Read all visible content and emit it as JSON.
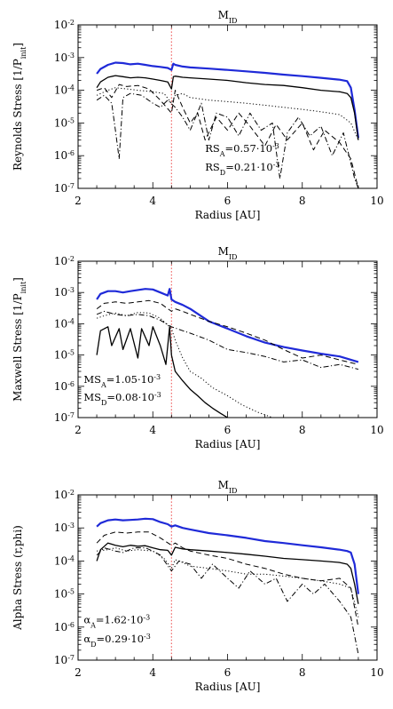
{
  "chart_data": [
    {
      "type": "line",
      "title": "M_ID",
      "title_main": "M",
      "title_sub": "ID",
      "xlabel": "Radius [AU]",
      "ylabel": "Reynolds Stress [1/P_init]",
      "ylabel_main": "Reynolds Stress [1/P",
      "ylabel_sub": "init",
      "ylabel_end": "]",
      "xlim": [
        2,
        10
      ],
      "ylim": [
        1e-07,
        0.01
      ],
      "yscale": "log",
      "x_ticks": [
        2,
        4,
        6,
        8,
        10
      ],
      "x_tick_labels": [
        "2",
        "4",
        "6",
        "8",
        "10"
      ],
      "y_ticks": [
        1e-07,
        1e-06,
        1e-05,
        0.0001,
        0.001,
        0.01
      ],
      "y_tick_labels": [
        [
          "10",
          "-7"
        ],
        [
          "10",
          "-6"
        ],
        [
          "10",
          "-5"
        ],
        [
          "10",
          "-4"
        ],
        [
          "10",
          "-3"
        ],
        [
          "10",
          "-2"
        ]
      ],
      "vline_x": 4.5,
      "annotations": [
        {
          "main": "RS",
          "sub": "A",
          "value": "=0.57·10",
          "exp": "-3",
          "x": 5.4,
          "y": 1.3e-06
        },
        {
          "main": "RS",
          "sub": "D",
          "value": "=0.21·10",
          "exp": "-3",
          "x": 5.4,
          "y": 3.5e-07
        }
      ],
      "series": [
        {
          "style": "blue",
          "x": [
            2.5,
            2.6,
            2.8,
            3.0,
            3.2,
            3.4,
            3.6,
            3.8,
            4.0,
            4.2,
            4.4,
            4.5,
            4.55,
            4.6,
            4.8,
            5.0,
            5.5,
            6.0,
            6.5,
            7.0,
            7.5,
            8.0,
            8.5,
            9.0,
            9.2,
            9.3,
            9.4,
            9.5
          ],
          "y": [
            0.00032,
            0.00045,
            0.0006,
            0.0007,
            0.00068,
            0.00062,
            0.00065,
            0.0006,
            0.00055,
            0.00052,
            0.00048,
            0.00042,
            0.00065,
            0.0006,
            0.00053,
            0.0005,
            0.00046,
            0.00042,
            0.00038,
            0.00034,
            0.0003,
            0.00027,
            0.00024,
            0.00021,
            0.00019,
            0.00012,
            2.5e-05,
            3.5e-06
          ]
        },
        {
          "style": "solid",
          "x": [
            2.5,
            2.6,
            2.8,
            3.0,
            3.2,
            3.4,
            3.6,
            3.8,
            4.0,
            4.2,
            4.4,
            4.5,
            4.55,
            4.6,
            4.8,
            5.0,
            5.5,
            6.0,
            6.5,
            7.0,
            7.5,
            8.0,
            8.5,
            9.0,
            9.2,
            9.3,
            9.4,
            9.5
          ],
          "y": [
            0.00012,
            0.00018,
            0.00025,
            0.00028,
            0.00026,
            0.00024,
            0.00025,
            0.00024,
            0.00022,
            0.0002,
            0.00018,
            0.00011,
            0.00026,
            0.00027,
            0.00025,
            0.00024,
            0.00022,
            0.0002,
            0.00017,
            0.00015,
            0.00014,
            0.00012,
            0.0001,
            9e-05,
            8e-05,
            6e-05,
            2e-05,
            3e-06
          ]
        },
        {
          "style": "dotted",
          "x": [
            2.5,
            2.8,
            3.0,
            3.3,
            3.6,
            4.0,
            4.3,
            4.5,
            4.6,
            4.8,
            5.0,
            5.5,
            6.0,
            6.5,
            7.0,
            7.5,
            8.0,
            8.5,
            9.0,
            9.3,
            9.5
          ],
          "y": [
            7e-05,
            0.0001,
            0.00012,
            0.00011,
            0.0001,
            9e-05,
            8e-05,
            4e-05,
            7e-05,
            8e-05,
            6e-05,
            5e-05,
            4.5e-05,
            4e-05,
            3.5e-05,
            3e-05,
            2.6e-05,
            2.2e-05,
            1.8e-05,
            1e-05,
            3e-06
          ]
        },
        {
          "style": "dashed",
          "x": [
            2.5,
            2.7,
            2.9,
            3.1,
            3.3,
            3.6,
            3.9,
            4.2,
            4.5,
            4.6,
            4.8,
            5.0,
            5.2,
            5.4,
            5.7,
            6.0,
            6.3,
            6.6,
            7.0,
            7.3,
            7.6,
            8.0,
            8.3,
            8.6,
            9.0,
            9.3,
            9.5
          ],
          "y": [
            0.0001,
            0.00012,
            6e-05,
            0.00015,
            0.00013,
            0.00014,
            0.00011,
            5e-05,
            2e-05,
            0.0001,
            3e-05,
            1e-05,
            2e-05,
            3e-06,
            1.5e-05,
            6e-06,
            2e-05,
            8e-06,
            2e-06,
            9e-06,
            3e-06,
            1e-05,
            1.5e-06,
            6e-06,
            2.5e-06,
            8e-07,
            1e-07
          ]
        },
        {
          "style": "dashdot",
          "x": [
            2.5,
            2.7,
            2.9,
            3.0,
            3.1,
            3.2,
            3.4,
            3.7,
            4.0,
            4.2,
            4.4,
            4.6,
            4.8,
            5.0,
            5.3,
            5.5,
            5.7,
            6.0,
            6.3,
            6.6,
            6.9,
            7.2,
            7.4,
            7.6,
            7.9,
            8.2,
            8.5,
            8.8,
            9.1,
            9.4,
            9.5
          ],
          "y": [
            5e-05,
            7e-05,
            4e-05,
            6e-06,
            8e-07,
            6e-05,
            8e-05,
            7e-05,
            4e-05,
            3e-05,
            5e-05,
            3e-05,
            1.5e-05,
            6e-06,
            4e-05,
            3e-06,
            2e-05,
            1.5e-05,
            4e-06,
            2e-05,
            6e-06,
            1e-05,
            2e-07,
            5e-06,
            1.5e-05,
            4e-06,
            8e-06,
            1e-06,
            5e-06,
            2e-07,
            1e-07
          ]
        }
      ]
    },
    {
      "type": "line",
      "title": "M_ID",
      "title_main": "M",
      "title_sub": "ID",
      "xlabel": "Radius [AU]",
      "ylabel": "Maxwell Stress [1/P_init]",
      "ylabel_main": "Maxwell Stress [1/P",
      "ylabel_sub": "init",
      "ylabel_end": "]",
      "xlim": [
        2,
        10
      ],
      "ylim": [
        1e-07,
        0.01
      ],
      "yscale": "log",
      "x_ticks": [
        2,
        4,
        6,
        8,
        10
      ],
      "x_tick_labels": [
        "2",
        "4",
        "6",
        "8",
        "10"
      ],
      "y_ticks": [
        1e-07,
        1e-06,
        1e-05,
        0.0001,
        0.001,
        0.01
      ],
      "y_tick_labels": [
        [
          "10",
          "-7"
        ],
        [
          "10",
          "-6"
        ],
        [
          "10",
          "-5"
        ],
        [
          "10",
          "-4"
        ],
        [
          "10",
          "-3"
        ],
        [
          "10",
          "-2"
        ]
      ],
      "vline_x": 4.5,
      "annotations": [
        {
          "main": "MS",
          "sub": "A",
          "value": "=1.05·10",
          "exp": "-3",
          "x": 2.15,
          "y": 1.3e-06
        },
        {
          "main": "MS",
          "sub": "D",
          "value": "=0.08·10",
          "exp": "-3",
          "x": 2.15,
          "y": 3.5e-07
        }
      ],
      "series": [
        {
          "style": "blue",
          "x": [
            2.5,
            2.6,
            2.8,
            3.0,
            3.2,
            3.4,
            3.6,
            3.8,
            4.0,
            4.2,
            4.4,
            4.45,
            4.5,
            4.6,
            4.8,
            5.0,
            5.5,
            6.0,
            6.5,
            7.0,
            7.5,
            8.0,
            8.5,
            9.0,
            9.5
          ],
          "y": [
            0.0006,
            0.0009,
            0.0011,
            0.0011,
            0.001,
            0.0011,
            0.0012,
            0.0013,
            0.00125,
            0.001,
            0.0008,
            0.0013,
            0.0006,
            0.0005,
            0.0004,
            0.0003,
            0.00012,
            7e-05,
            4e-05,
            2.5e-05,
            1.8e-05,
            1.4e-05,
            1.1e-05,
            9e-06,
            6e-06
          ]
        },
        {
          "style": "dashed",
          "x": [
            2.5,
            2.7,
            3.0,
            3.3,
            3.6,
            3.9,
            4.2,
            4.5,
            4.6,
            4.8,
            5.0,
            5.5,
            6.0,
            6.5,
            7.0,
            7.5,
            8.0,
            8.5,
            9.0,
            9.5
          ],
          "y": [
            0.0003,
            0.00045,
            0.0005,
            0.00045,
            0.0005,
            0.00055,
            0.00045,
            0.00025,
            0.0003,
            0.00025,
            0.0002,
            0.00012,
            8e-05,
            5e-05,
            3e-05,
            1.5e-05,
            8e-06,
            1e-05,
            7e-06,
            5e-06
          ]
        },
        {
          "style": "dotted",
          "x": [
            2.5,
            2.7,
            3.0,
            3.3,
            3.6,
            3.9,
            4.2,
            4.5,
            4.6,
            4.8,
            5.0,
            5.3,
            5.6,
            6.0,
            6.4,
            6.8,
            7.2
          ],
          "y": [
            0.00015,
            0.00018,
            0.00022,
            0.00018,
            0.00023,
            0.00022,
            0.00015,
            7e-05,
            3e-05,
            8e-06,
            3e-06,
            1.8e-06,
            9e-07,
            5e-07,
            2.5e-07,
            1.5e-07,
            1e-07
          ]
        },
        {
          "style": "dashdot",
          "x": [
            2.5,
            2.7,
            3.0,
            3.3,
            3.6,
            3.9,
            4.2,
            4.5,
            4.8,
            5.0,
            5.5,
            6.0,
            6.5,
            7.0,
            7.5,
            8.0,
            8.5,
            9.0,
            9.5
          ],
          "y": [
            0.0002,
            0.00025,
            0.0002,
            0.00018,
            0.0002,
            0.00018,
            0.00013,
            8e-05,
            6e-05,
            5e-05,
            3e-05,
            1.5e-05,
            1.2e-05,
            9e-06,
            6e-06,
            7e-06,
            4e-06,
            5e-06,
            3.5e-06
          ]
        },
        {
          "style": "solid",
          "x": [
            2.5,
            2.6,
            2.8,
            2.9,
            3.1,
            3.2,
            3.4,
            3.6,
            3.7,
            3.9,
            4.0,
            4.2,
            4.35,
            4.45,
            4.5,
            4.6,
            4.8,
            5.0,
            5.2,
            5.4,
            5.6,
            5.8,
            6.0
          ],
          "y": [
            1e-05,
            6e-05,
            8e-05,
            2e-05,
            7e-05,
            1.5e-05,
            7e-05,
            8e-06,
            7e-05,
            2e-05,
            8e-05,
            2e-05,
            5e-06,
            8e-05,
            1e-05,
            3e-06,
            1.5e-06,
            8e-07,
            5e-07,
            3e-07,
            2e-07,
            1.4e-07,
            1e-07
          ]
        }
      ]
    },
    {
      "type": "line",
      "title": "M_ID",
      "title_main": "M",
      "title_sub": "ID",
      "xlabel": "Radius [AU]",
      "ylabel": "Alpha Stress (r,phi)",
      "ylabel_main": "Alpha Stress (r,phi)",
      "ylabel_sub": "",
      "ylabel_end": "",
      "xlim": [
        2,
        10
      ],
      "ylim": [
        1e-07,
        0.01
      ],
      "yscale": "log",
      "x_ticks": [
        2,
        4,
        6,
        8,
        10
      ],
      "x_tick_labels": [
        "2",
        "4",
        "6",
        "8",
        "10"
      ],
      "y_ticks": [
        1e-07,
        1e-06,
        1e-05,
        0.0001,
        0.001,
        0.01
      ],
      "y_tick_labels": [
        [
          "10",
          "-7"
        ],
        [
          "10",
          "-6"
        ],
        [
          "10",
          "-5"
        ],
        [
          "10",
          "-4"
        ],
        [
          "10",
          "-3"
        ],
        [
          "10",
          "-2"
        ]
      ],
      "vline_x": 4.5,
      "annotations": [
        {
          "main": "α",
          "sub": "A",
          "value": "=1.62·10",
          "exp": "-3",
          "x": 2.15,
          "y": 1.3e-06
        },
        {
          "main": "α",
          "sub": "D",
          "value": "=0.29·10",
          "exp": "-3",
          "x": 2.15,
          "y": 3.5e-07
        }
      ],
      "series": [
        {
          "style": "blue",
          "x": [
            2.5,
            2.6,
            2.8,
            3.0,
            3.2,
            3.4,
            3.6,
            3.8,
            4.0,
            4.2,
            4.4,
            4.5,
            4.6,
            4.8,
            5.0,
            5.5,
            6.0,
            6.5,
            7.0,
            7.5,
            8.0,
            8.5,
            9.0,
            9.2,
            9.3,
            9.4,
            9.5
          ],
          "y": [
            0.0011,
            0.0014,
            0.0017,
            0.0018,
            0.0017,
            0.00175,
            0.0018,
            0.0019,
            0.00185,
            0.0015,
            0.0013,
            0.0011,
            0.0012,
            0.001,
            0.0009,
            0.0007,
            0.0006,
            0.0005,
            0.0004,
            0.00035,
            0.0003,
            0.00026,
            0.00022,
            0.0002,
            0.00018,
            8e-05,
            1e-05
          ]
        },
        {
          "style": "dashed",
          "x": [
            2.5,
            2.7,
            3.0,
            3.3,
            3.6,
            3.9,
            4.2,
            4.5,
            4.6,
            4.8,
            5.0,
            5.5,
            6.0,
            6.5,
            7.0,
            7.5,
            8.0,
            8.5,
            9.0,
            9.3,
            9.5
          ],
          "y": [
            0.00035,
            0.0006,
            0.00075,
            0.0007,
            0.00075,
            0.00075,
            0.0005,
            0.0003,
            0.00035,
            0.00025,
            0.0002,
            0.00015,
            0.00012,
            8e-05,
            6e-05,
            4e-05,
            3e-05,
            2.5e-05,
            3e-05,
            1.5e-05,
            1e-06
          ]
        },
        {
          "style": "solid",
          "x": [
            2.5,
            2.6,
            2.8,
            3.0,
            3.2,
            3.4,
            3.6,
            3.8,
            4.0,
            4.2,
            4.4,
            4.5,
            4.6,
            4.8,
            5.0,
            5.5,
            6.0,
            6.5,
            7.0,
            7.5,
            8.0,
            8.5,
            9.0,
            9.2,
            9.3,
            9.4,
            9.5
          ],
          "y": [
            0.0001,
            0.00022,
            0.00035,
            0.0003,
            0.00027,
            0.0003,
            0.00028,
            0.00029,
            0.00025,
            0.00022,
            0.00021,
            0.00015,
            0.00026,
            0.00023,
            0.00022,
            0.0002,
            0.00018,
            0.00016,
            0.00014,
            0.00012,
            0.00011,
            0.0001,
            9e-05,
            8e-05,
            6e-05,
            2e-05,
            5e-06
          ]
        },
        {
          "style": "dotted",
          "x": [
            2.5,
            2.8,
            3.0,
            3.3,
            3.6,
            4.0,
            4.3,
            4.5,
            4.6,
            4.8,
            5.0,
            5.5,
            6.0,
            6.5,
            7.0,
            7.5,
            8.0,
            8.5,
            9.0,
            9.3,
            9.5
          ],
          "y": [
            0.0002,
            0.00022,
            0.00025,
            0.0002,
            0.00022,
            0.0002,
            0.00012,
            6e-05,
            0.00011,
            9e-05,
            7e-05,
            6e-05,
            5e-05,
            4e-05,
            4e-05,
            3.5e-05,
            3e-05,
            2.5e-05,
            2e-05,
            1.5e-05,
            2e-06
          ]
        },
        {
          "style": "dashdot",
          "x": [
            2.5,
            2.7,
            3.0,
            3.2,
            3.5,
            3.8,
            4.0,
            4.2,
            4.5,
            4.7,
            5.0,
            5.3,
            5.6,
            6.0,
            6.3,
            6.6,
            7.0,
            7.3,
            7.6,
            8.0,
            8.3,
            8.6,
            9.0,
            9.3,
            9.5
          ],
          "y": [
            0.00015,
            0.00025,
            0.0002,
            0.00018,
            0.00025,
            0.00025,
            0.0002,
            0.00015,
            5e-05,
            0.0001,
            8e-05,
            3e-05,
            8e-05,
            3e-05,
            1.5e-05,
            5e-05,
            2e-05,
            3e-05,
            6e-06,
            2e-05,
            1e-05,
            2e-05,
            6e-06,
            2e-06,
            1.5e-07
          ]
        }
      ]
    }
  ]
}
